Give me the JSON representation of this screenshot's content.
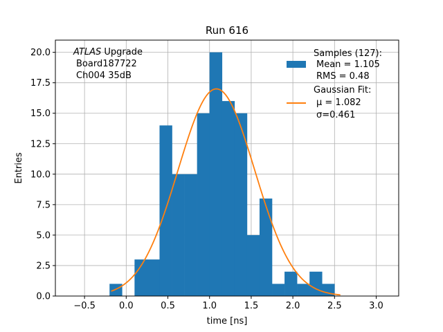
{
  "chart_data": {
    "type": "bar",
    "title": "Run 616",
    "xlabel": "time [ns]",
    "ylabel": "Entries",
    "xlim": [
      -0.85,
      3.27
    ],
    "ylim": [
      0,
      21
    ],
    "xticks": [
      -0.5,
      0.0,
      0.5,
      1.0,
      1.5,
      2.0,
      2.5,
      3.0
    ],
    "xtick_labels": [
      "−0.5",
      "0.0",
      "0.5",
      "1.0",
      "1.5",
      "2.0",
      "2.5",
      "3.0"
    ],
    "yticks": [
      0,
      2.5,
      5,
      7.5,
      10,
      12.5,
      15,
      17.5,
      20
    ],
    "ytick_labels": [
      "0.0",
      "2.5",
      "5.0",
      "7.5",
      "10.0",
      "12.5",
      "15.0",
      "17.5",
      "20.0"
    ],
    "grid": true,
    "legend_placement": "top-right",
    "bar_color": "#1f77b4",
    "fit_color": "#ff7f0e",
    "annotation": {
      "line1_italic": "ATLAS",
      "line1_rest": " Upgrade",
      "line2": "Board187722",
      "line3": "Ch004 35dB"
    },
    "series": [
      {
        "name": "Samples (127):",
        "legend_lines": [
          "Mean = 1.105",
          "RMS = 0.48"
        ],
        "bin_edges": [
          -0.2,
          -0.05,
          0.1,
          0.25,
          0.4,
          0.55,
          0.7,
          0.85,
          1.0,
          1.15,
          1.3,
          1.45,
          1.6,
          1.75,
          1.9,
          2.05,
          2.2,
          2.35,
          2.5,
          2.65
        ],
        "counts": [
          1,
          0,
          3,
          3,
          14,
          10,
          10,
          15,
          20,
          16,
          15,
          5,
          8,
          1,
          2,
          1,
          2,
          1,
          0
        ]
      },
      {
        "name": "Gaussian Fit:",
        "legend_lines": [
          "μ = 1.082",
          "σ=0.461"
        ],
        "mu": 1.082,
        "sigma": 0.461,
        "amplitude": 17.0,
        "x_range": [
          -0.18,
          2.57
        ]
      }
    ]
  }
}
